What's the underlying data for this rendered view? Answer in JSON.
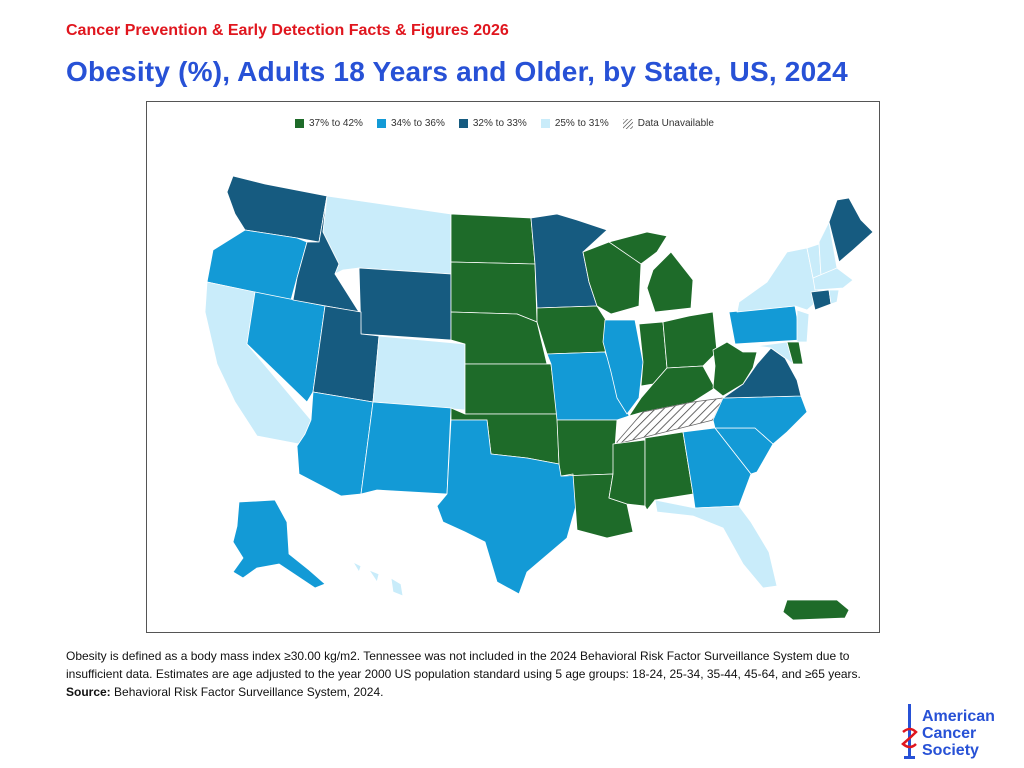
{
  "header": {
    "kicker": "Cancer Prevention & Early Detection Facts & Figures 2026",
    "title": "Obesity (%), Adults 18 Years and Older, by State, US, 2024"
  },
  "legend": [
    {
      "label": "37% to 42%",
      "color": "#1e6b29"
    },
    {
      "label": "34% to 36%",
      "color": "#139ad6"
    },
    {
      "label": "32% to 33%",
      "color": "#165b80"
    },
    {
      "label": "25% to 31%",
      "color": "#c9ecfa"
    },
    {
      "label": "Data Unavailable",
      "color": "hatched"
    }
  ],
  "map_data": {
    "categories": {
      "37% to 42%": [
        "ND",
        "SD",
        "NE",
        "KS",
        "OK",
        "AR",
        "LA",
        "MS",
        "AL",
        "IA",
        "WI",
        "MI",
        "IN",
        "OH",
        "KY",
        "WV",
        "DE",
        "PR"
      ],
      "34% to 36%": [
        "OR",
        "NV",
        "AZ",
        "NM",
        "TX",
        "MO",
        "IL",
        "GA",
        "SC",
        "NC",
        "PA",
        "AK"
      ],
      "32% to 33%": [
        "WA",
        "ID",
        "WY",
        "UT",
        "MN",
        "VA",
        "ME",
        "CT"
      ],
      "25% to 31%": [
        "CA",
        "MT",
        "CO",
        "FL",
        "NY",
        "VT",
        "NH",
        "MA",
        "RI",
        "NJ",
        "MD",
        "HI"
      ],
      "Data Unavailable": [
        "TN"
      ]
    }
  },
  "notes": {
    "definition": "Obesity is defined as a body mass index ≥30.00 kg/m2. Tennessee was not included in the 2024 Behavioral Risk Factor Surveillance System due to insufficient data. Estimates are age adjusted to the year 2000 US population standard using 5 age groups: 18-24, 25-34, 35-44, 45-64, and ≥65 years.",
    "source_label": "Source:",
    "source_text": " Behavioral Risk Factor Surveillance System, 2024."
  },
  "logo": {
    "line1": "American",
    "line2": "Cancer",
    "line3": "Society"
  }
}
